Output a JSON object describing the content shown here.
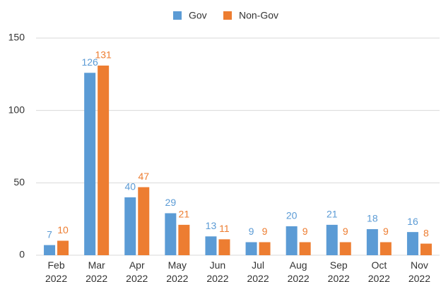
{
  "chart_data": {
    "type": "bar",
    "categories": [
      "Feb 2022",
      "Mar 2022",
      "Apr 2022",
      "May 2022",
      "Jun 2022",
      "Jul 2022",
      "Aug 2022",
      "Sep 2022",
      "Oct 2022",
      "Nov 2022"
    ],
    "series": [
      {
        "name": "Gov",
        "color": "#5b9bd5",
        "values": [
          7,
          126,
          40,
          29,
          13,
          9,
          20,
          21,
          18,
          16
        ]
      },
      {
        "name": "Non-Gov",
        "color": "#ed7d31",
        "values": [
          10,
          131,
          47,
          21,
          11,
          9,
          9,
          9,
          9,
          8
        ]
      }
    ],
    "ylim": [
      0,
      150
    ],
    "yticks": [
      0,
      50,
      100,
      150
    ],
    "grid": true,
    "legend": "top"
  }
}
